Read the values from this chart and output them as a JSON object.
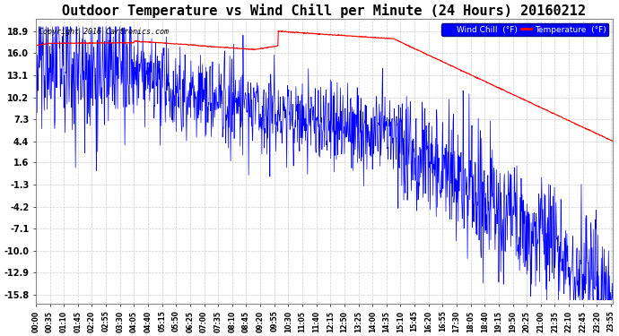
{
  "title": "Outdoor Temperature vs Wind Chill per Minute (24 Hours) 20160212",
  "copyright": "Copyright 2016 Cartronics.com",
  "legend_labels": [
    "Wind Chill  (°F)",
    "Temperature  (°F)"
  ],
  "yticks": [
    18.9,
    16.0,
    13.1,
    10.2,
    7.3,
    4.4,
    1.6,
    -1.3,
    -4.2,
    -7.1,
    -10.0,
    -12.9,
    -15.8
  ],
  "ylim": [
    -17.0,
    20.5
  ],
  "background_color": "#ffffff",
  "grid_color": "#cccccc",
  "title_fontsize": 11,
  "minutes_per_day": 1440,
  "seed": 42,
  "xtick_labels": [
    "00:00",
    "00:35",
    "01:10",
    "01:45",
    "02:20",
    "02:55",
    "03:30",
    "04:05",
    "04:40",
    "05:15",
    "05:50",
    "06:25",
    "07:00",
    "07:35",
    "08:10",
    "08:45",
    "09:20",
    "09:55",
    "10:30",
    "11:05",
    "11:40",
    "12:15",
    "12:50",
    "13:25",
    "14:00",
    "14:35",
    "15:10",
    "15:45",
    "16:20",
    "16:55",
    "17:30",
    "18:05",
    "18:40",
    "19:15",
    "19:50",
    "20:25",
    "21:00",
    "21:35",
    "22:10",
    "22:45",
    "23:20",
    "23:55"
  ]
}
